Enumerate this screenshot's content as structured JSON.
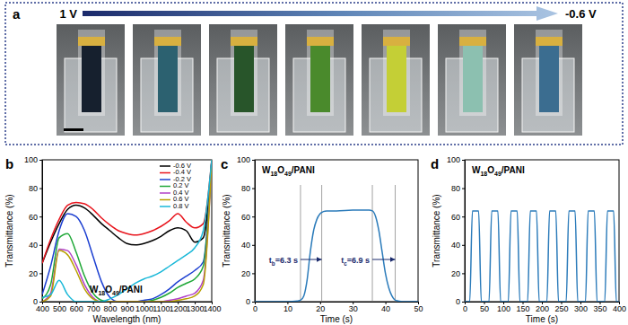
{
  "panel_a": {
    "label": "a",
    "arrow_start": "1 V",
    "arrow_end": "-0.6 V"
  },
  "chart_data": [
    {
      "type": "line",
      "panel_label": "b",
      "title": "W18O49/PANI",
      "x_label": "Wavelength (nm)",
      "y_label": "Transmittance (%)",
      "xlim": [
        400,
        1400
      ],
      "xticks": [
        400,
        500,
        600,
        700,
        800,
        900,
        1000,
        1100,
        1200,
        1300,
        1400
      ],
      "ylim": [
        0,
        100
      ],
      "yticks": [
        0,
        20,
        40,
        60,
        80,
        100
      ],
      "legend": "upper right",
      "x": [
        400,
        450,
        500,
        550,
        600,
        650,
        700,
        750,
        800,
        850,
        900,
        950,
        1000,
        1050,
        1100,
        1150,
        1200,
        1250,
        1300,
        1350,
        1400
      ],
      "series": [
        {
          "name": "-0.6 V",
          "color": "#000000",
          "values": [
            27,
            42,
            55,
            65,
            68,
            66,
            61,
            55,
            50,
            45,
            41,
            40,
            41,
            43,
            46,
            50,
            52,
            50,
            42,
            45,
            100
          ]
        },
        {
          "name": "-0.4 V",
          "color": "#e8141c",
          "values": [
            27,
            44,
            58,
            68,
            70,
            69,
            65,
            59,
            54,
            50,
            48,
            47,
            48,
            50,
            53,
            57,
            62,
            56,
            52,
            55,
            100
          ]
        },
        {
          "name": "-0.2 V",
          "color": "#1c3fd1",
          "values": [
            5,
            25,
            50,
            62,
            60,
            50,
            32,
            14,
            3,
            0,
            0,
            0,
            1,
            2,
            5,
            9,
            14,
            18,
            22,
            28,
            100
          ]
        },
        {
          "name": "0.2 V",
          "color": "#20a838",
          "values": [
            2,
            12,
            45,
            48,
            35,
            18,
            6,
            1,
            0,
            0,
            0,
            0,
            0,
            1,
            3,
            6,
            10,
            13,
            16,
            25,
            100
          ]
        },
        {
          "name": "0.4 V",
          "color": "#b040c8",
          "values": [
            0,
            6,
            37,
            36,
            26,
            12,
            3,
            0,
            0,
            0,
            0,
            0,
            0,
            0,
            0,
            1,
            2,
            4,
            6,
            15,
            100
          ]
        },
        {
          "name": "0.6 V",
          "color": "#b8a000",
          "values": [
            0,
            4,
            36,
            33,
            22,
            9,
            2,
            0,
            0,
            0,
            0,
            0,
            0,
            0,
            0,
            0,
            1,
            2,
            4,
            12,
            100
          ]
        },
        {
          "name": "0.8 V",
          "color": "#1ab8d8",
          "values": [
            3,
            5,
            15,
            5,
            0,
            0,
            0,
            0,
            2,
            5,
            9,
            13,
            16,
            18,
            21,
            25,
            29,
            33,
            38,
            50,
            100
          ]
        }
      ]
    },
    {
      "type": "line",
      "panel_label": "c",
      "title": "W18O49/PANI",
      "x_label": "Time (s)",
      "y_label": "Transmittance (%)",
      "xlim": [
        0,
        50
      ],
      "xticks": [
        0,
        10,
        20,
        30,
        40,
        50
      ],
      "ylim": [
        0,
        100
      ],
      "yticks": [
        0,
        20,
        40,
        60,
        80,
        100
      ],
      "annotations": [
        "tb=6.3 s",
        "tc=6.9 s"
      ],
      "guide_lines": [
        14,
        20.5,
        36,
        43
      ],
      "x": [
        0,
        5,
        10,
        13,
        14,
        15,
        16,
        17,
        18,
        19,
        20,
        21,
        22,
        25,
        30,
        35,
        36,
        37,
        38,
        39,
        40,
        41,
        42,
        43,
        44,
        45,
        50
      ],
      "series": [
        {
          "color": "#2b7bba",
          "values": [
            0,
            0,
            0,
            0.5,
            1,
            4,
            15,
            35,
            50,
            58,
            62,
            63.5,
            64,
            64,
            64.5,
            64.5,
            64,
            60,
            50,
            35,
            20,
            10,
            4,
            1,
            0.5,
            0,
            0
          ]
        }
      ]
    },
    {
      "type": "line",
      "panel_label": "d",
      "title": "W18O49/PANI",
      "x_label": "Time (s)",
      "y_label": "Transmittance (%)",
      "xlim": [
        0,
        400
      ],
      "xticks": [
        0,
        50,
        100,
        150,
        200,
        250,
        300,
        350,
        400
      ],
      "ylim": [
        0,
        100
      ],
      "yticks": [
        0,
        20,
        40,
        60,
        80,
        100
      ],
      "x": [
        0,
        13,
        20,
        36,
        43,
        63,
        70,
        86,
        93,
        113,
        120,
        136,
        143,
        163,
        170,
        186,
        193,
        213,
        220,
        236,
        243,
        263,
        270,
        286,
        293,
        313,
        320,
        336,
        343,
        363,
        370,
        386,
        393,
        400
      ],
      "series": [
        {
          "color": "#2b7bba",
          "values": [
            0,
            0,
            64,
            64,
            0,
            0,
            64,
            64,
            0,
            0,
            64,
            64,
            0,
            0,
            64,
            64,
            0,
            0,
            64,
            64,
            0,
            0,
            64,
            64,
            0,
            0,
            64,
            64,
            0,
            0,
            64,
            64,
            0,
            0
          ]
        }
      ]
    }
  ]
}
